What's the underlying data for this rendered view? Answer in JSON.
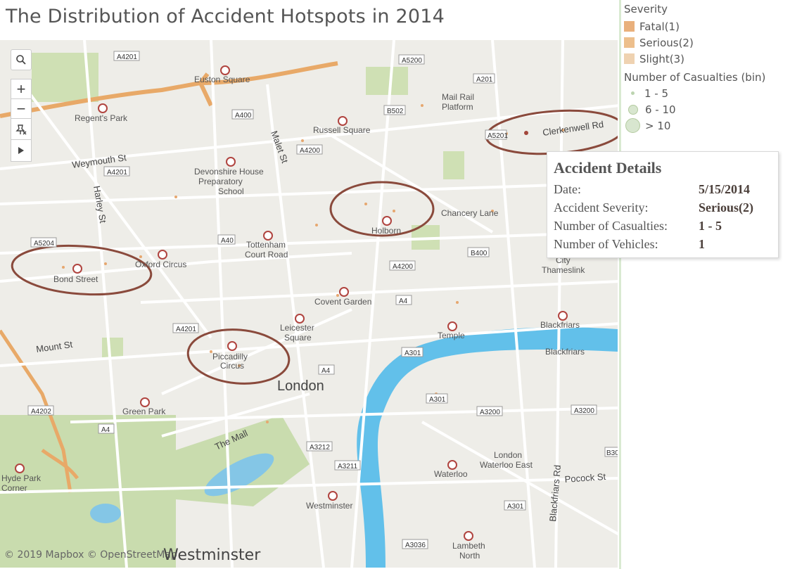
{
  "title": "The Distribution of Accident Hotspots in 2014",
  "legend": {
    "severity_header": "Severity",
    "severity_items": [
      {
        "label": "Fatal(1)",
        "color": "#e9b07c"
      },
      {
        "label": "Serious(2)",
        "color": "#edbf8c"
      },
      {
        "label": "Slight(3)",
        "color": "#efd2b1"
      }
    ],
    "casualties_header": "Number of Casualties (bin)",
    "casualty_bins": [
      {
        "label": "1 - 5"
      },
      {
        "label": "6 - 10"
      },
      {
        "label": "> 10"
      }
    ]
  },
  "tooltip": {
    "title": "Accident Details",
    "rows": [
      {
        "label": "Date:",
        "value": "5/15/2014"
      },
      {
        "label": "Accident Severity:",
        "value": "Serious(2)"
      },
      {
        "label": "Number of Casualties:",
        "value": "1 - 5"
      },
      {
        "label": "Number of Vehicles:",
        "value": "1"
      }
    ]
  },
  "map_controls": {
    "search_icon": "search-icon",
    "zoom_in": "+",
    "zoom_out": "−",
    "pin_icon": "pin-icon",
    "play_icon": "play-icon"
  },
  "map": {
    "attribution": "© 2019 Mapbox © OpenStreetMap",
    "district_label": "Westminster",
    "city_label": "London",
    "stations": [
      {
        "name": "Euston Square"
      },
      {
        "name": "Regent's Park"
      },
      {
        "name": "Russell Square"
      },
      {
        "name": "Mail Rail Platform"
      },
      {
        "name": "Devonshire House Preparatory School"
      },
      {
        "name": "Chancery Lane"
      },
      {
        "name": "Holborn"
      },
      {
        "name": "Tottenham Court Road"
      },
      {
        "name": "Oxford Circus"
      },
      {
        "name": "Bond Street"
      },
      {
        "name": "Covent Garden"
      },
      {
        "name": "Leicester Square"
      },
      {
        "name": "Piccadilly Circus"
      },
      {
        "name": "Green Park"
      },
      {
        "name": "Temple"
      },
      {
        "name": "Blackfriars"
      },
      {
        "name": "City Thameslink"
      },
      {
        "name": "London Waterloo East"
      },
      {
        "name": "Waterloo"
      },
      {
        "name": "Westminster"
      },
      {
        "name": "Lambeth North"
      },
      {
        "name": "Hyde Park Corner"
      }
    ],
    "streets": [
      "Weymouth St",
      "Harley St",
      "Malet St",
      "Clerkenwell Rd",
      "Mount St",
      "The Mall",
      "Blackfriars Rd",
      "Pocock St"
    ],
    "road_shields": [
      "A4201",
      "A5200",
      "A201",
      "B502",
      "A400",
      "A4200",
      "A5201",
      "A5204",
      "A40",
      "B400",
      "A4200",
      "A4",
      "A4201",
      "A301",
      "A4",
      "A301",
      "A3200",
      "A3200",
      "A4202",
      "A4",
      "A3212",
      "A3211",
      "A301",
      "A3036",
      "B30",
      "A4201"
    ],
    "hotspots": [
      "Clerkenwell Rd",
      "Holborn",
      "Bond Street",
      "Piccadilly Circus"
    ]
  }
}
